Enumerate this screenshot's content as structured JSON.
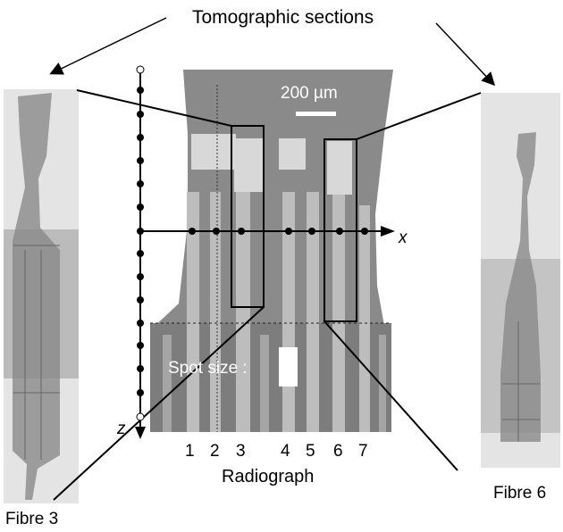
{
  "title": "Tomographic sections",
  "left_section_label": "Fibre 3",
  "right_section_label": "Fibre 6",
  "radiograph_label": "Radiograph",
  "scale_bar_label": "200 µm",
  "spot_size_label": "Spot size :",
  "axis_x_label": "x",
  "axis_z_label": "z",
  "fibre_numbers": [
    "1",
    "2",
    "3",
    "4",
    "5",
    "6",
    "7"
  ],
  "colors": {
    "background": "#ffffff",
    "radiograph_gray": "#8a8a8a",
    "fibre_light": "#bdbdbd",
    "section_gray": "#9c9c9c",
    "line": "#000000"
  }
}
